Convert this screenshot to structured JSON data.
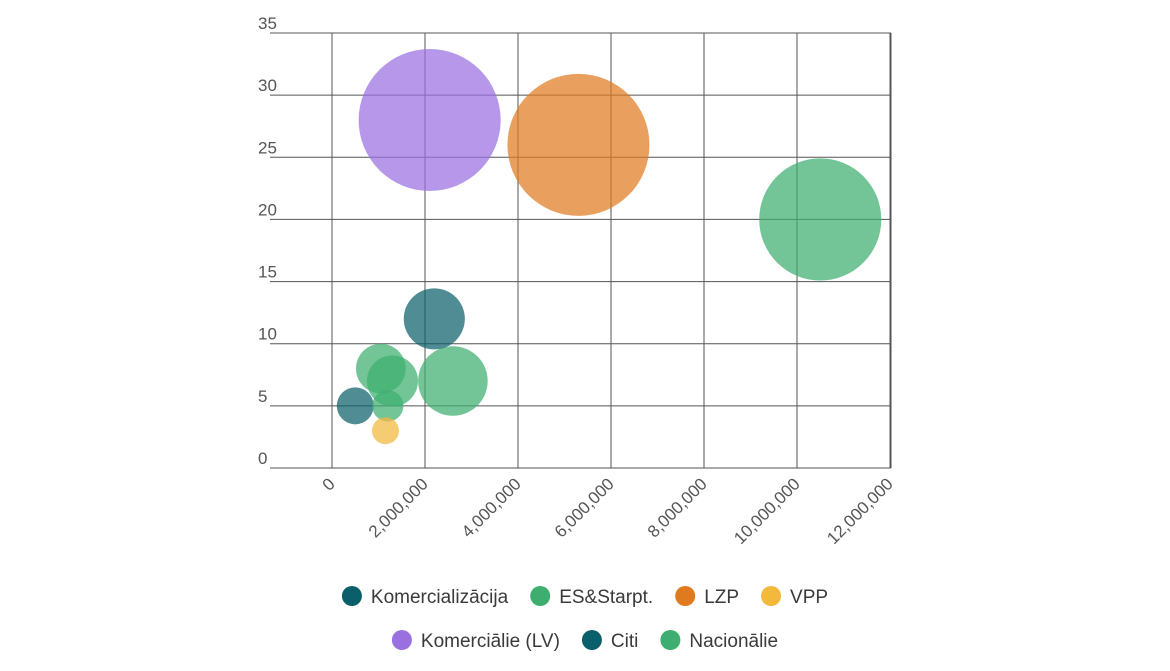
{
  "chart_data": {
    "type": "bubble",
    "title": "",
    "xlabel": "",
    "ylabel": "",
    "xlim": [
      0,
      12000000
    ],
    "ylim": [
      0,
      35
    ],
    "x_ticks": [
      {
        "value": 0,
        "label": "0"
      },
      {
        "value": 2000000,
        "label": "2,000,000"
      },
      {
        "value": 4000000,
        "label": "4,000,000"
      },
      {
        "value": 6000000,
        "label": "6,000,000"
      },
      {
        "value": 8000000,
        "label": "8,000,000"
      },
      {
        "value": 10000000,
        "label": "10,000,000"
      },
      {
        "value": 12000000,
        "label": "12,000,000"
      }
    ],
    "y_ticks": [
      {
        "value": 0,
        "label": "0"
      },
      {
        "value": 5,
        "label": "5"
      },
      {
        "value": 10,
        "label": "10"
      },
      {
        "value": 15,
        "label": "15"
      },
      {
        "value": 20,
        "label": "20"
      },
      {
        "value": 25,
        "label": "25"
      },
      {
        "value": 30,
        "label": "30"
      },
      {
        "value": 35,
        "label": "35"
      }
    ],
    "grid": true,
    "legend_position": "bottom",
    "series": [
      {
        "name": "Komercializācija",
        "color": "#0b5f6b",
        "points": [
          {
            "x": 500000,
            "y": 5,
            "size": 0.26
          }
        ]
      },
      {
        "name": "ES&Starpt.",
        "color": "#3dae6f",
        "points": [
          {
            "x": 1050000,
            "y": 8,
            "size": 0.35
          }
        ]
      },
      {
        "name": "LZP",
        "color": "#e07a1f",
        "points": [
          {
            "x": 5300000,
            "y": 26,
            "size": 1.0
          }
        ]
      },
      {
        "name": "VPP",
        "color": "#f2b93b",
        "points": [
          {
            "x": 1150000,
            "y": 3,
            "size": 0.19
          }
        ]
      },
      {
        "name": "Komerciālie (LV)",
        "color": "#9a6fe0",
        "points": [
          {
            "x": 2100000,
            "y": 28,
            "size": 1.0
          }
        ]
      },
      {
        "name": "Citi",
        "color": "#0b5f6b",
        "points": [
          {
            "x": 2200000,
            "y": 12,
            "size": 0.43
          }
        ]
      },
      {
        "name": "Nacionālie",
        "color": "#3dae6f",
        "points": [
          {
            "x": 10500000,
            "y": 20,
            "size": 0.86
          },
          {
            "x": 2600000,
            "y": 7,
            "size": 0.49
          },
          {
            "x": 1300000,
            "y": 7,
            "size": 0.36
          },
          {
            "x": 1200000,
            "y": 5,
            "size": 0.22
          }
        ]
      }
    ]
  }
}
